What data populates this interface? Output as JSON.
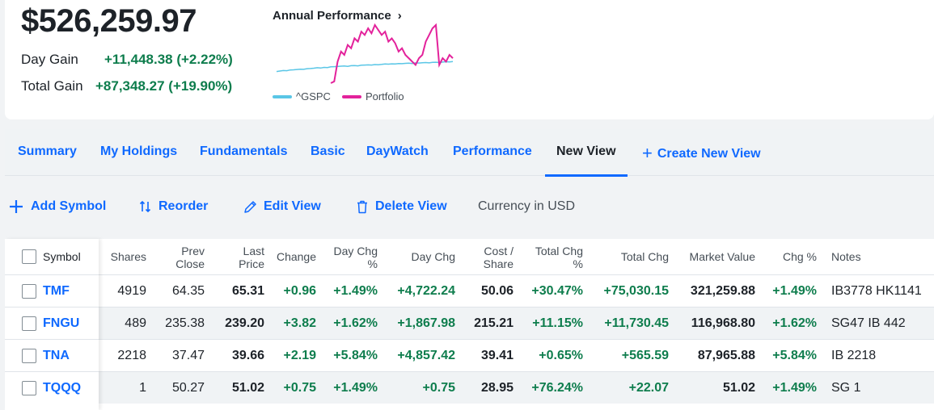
{
  "summary": {
    "total_value": "$526,259.97",
    "day_gain_label": "Day Gain",
    "day_gain_value": "+11,448.38 (+2.22%)",
    "total_gain_label": "Total Gain",
    "total_gain_value": "+87,348.27 (+19.90%)"
  },
  "performance": {
    "title": "Annual Performance",
    "chevron": "›",
    "legend": [
      {
        "name": "^GSPC",
        "color": "#5ac6e6"
      },
      {
        "name": "Portfolio",
        "color": "#e3229b"
      }
    ]
  },
  "chart_data": {
    "type": "line",
    "title": "Annual Performance",
    "xlabel": "",
    "ylabel": "",
    "grid": false,
    "legend": "bottom-left",
    "x": [
      0,
      1,
      2,
      3,
      4,
      5,
      6,
      7,
      8,
      9,
      10,
      11,
      12,
      13,
      14,
      15,
      16,
      17,
      18,
      19,
      20,
      21,
      22,
      23,
      24,
      25,
      26,
      27,
      28,
      29,
      30,
      31,
      32,
      33,
      34,
      35,
      36,
      37,
      38,
      39,
      40,
      41,
      42,
      43,
      44,
      45,
      46,
      47,
      48,
      49,
      50,
      51,
      52
    ],
    "series": [
      {
        "name": "^GSPC",
        "color": "#5ac6e6",
        "values": [
          0,
          0.3,
          0.6,
          0.5,
          0.9,
          1.0,
          1.2,
          1.4,
          1.3,
          1.7,
          1.8,
          2.0,
          2.3,
          2.1,
          2.5,
          2.4,
          2.8,
          2.9,
          3.0,
          3.2,
          3.3,
          3.1,
          3.5,
          3.6,
          3.4,
          3.8,
          3.9,
          4.0,
          3.9,
          4.2,
          4.1,
          4.3,
          4.5,
          4.4,
          4.6,
          4.5,
          4.8,
          4.7,
          4.9,
          5.0,
          4.8,
          5.2,
          5.1,
          5.3,
          5.4,
          5.2,
          5.5,
          5.6,
          5.4,
          5.7,
          5.9,
          5.8,
          6.0
        ]
      },
      {
        "name": "Portfolio",
        "color": "#e3229b",
        "values": [
          null,
          null,
          null,
          null,
          null,
          null,
          null,
          null,
          null,
          null,
          null,
          null,
          null,
          null,
          null,
          null,
          -7,
          -6,
          6,
          12,
          10,
          16,
          14,
          20,
          18,
          24,
          22,
          26,
          23,
          28,
          25,
          22,
          24,
          18,
          20,
          17,
          12,
          14,
          10,
          8,
          6,
          4,
          8,
          10,
          18,
          22,
          26,
          28,
          4,
          8,
          6,
          10,
          8
        ]
      }
    ]
  },
  "tabs": [
    {
      "label": "Summary",
      "active": false
    },
    {
      "label": "My Holdings",
      "active": false
    },
    {
      "label": "Fundamentals",
      "active": false
    },
    {
      "label": "Basic",
      "active": false
    },
    {
      "label": "DayWatch",
      "active": false
    },
    {
      "label": "Performance",
      "active": false
    },
    {
      "label": "New View",
      "active": true
    },
    {
      "label": "Create New View",
      "active": false
    }
  ],
  "toolbar": {
    "add_symbol": "Add Symbol",
    "reorder": "Reorder",
    "edit_view": "Edit View",
    "delete_view": "Delete View",
    "currency": "Currency in USD"
  },
  "table": {
    "headers": {
      "symbol": "Symbol",
      "shares": "Shares",
      "prev_close": [
        "Prev",
        "Close"
      ],
      "last_price": [
        "Last",
        "Price"
      ],
      "change": "Change",
      "day_chg_pct": [
        "Day Chg",
        "%"
      ],
      "day_chg": "Day Chg",
      "cost_share": [
        "Cost /",
        "Share"
      ],
      "total_chg_pct": [
        "Total Chg",
        "%"
      ],
      "total_chg": "Total Chg",
      "market_value": "Market Value",
      "chg_pct": "Chg %",
      "notes": "Notes"
    },
    "rows": [
      {
        "symbol": "TMF",
        "shares": "4919",
        "prev_close": "64.35",
        "last_price": "65.31",
        "change": "+0.96",
        "day_chg_pct": "+1.49%",
        "day_chg": "+4,722.24",
        "cost_share": "50.06",
        "total_chg_pct": "+30.47%",
        "total_chg": "+75,030.15",
        "market_value": "321,259.88",
        "chg_pct": "+1.49%",
        "notes": "IB3778 HK1141"
      },
      {
        "symbol": "FNGU",
        "shares": "489",
        "prev_close": "235.38",
        "last_price": "239.20",
        "change": "+3.82",
        "day_chg_pct": "+1.62%",
        "day_chg": "+1,867.98",
        "cost_share": "215.21",
        "total_chg_pct": "+11.15%",
        "total_chg": "+11,730.45",
        "market_value": "116,968.80",
        "chg_pct": "+1.62%",
        "notes": "SG47 IB 442"
      },
      {
        "symbol": "TNA",
        "shares": "2218",
        "prev_close": "37.47",
        "last_price": "39.66",
        "change": "+2.19",
        "day_chg_pct": "+5.84%",
        "day_chg": "+4,857.42",
        "cost_share": "39.41",
        "total_chg_pct": "+0.65%",
        "total_chg": "+565.59",
        "market_value": "87,965.88",
        "chg_pct": "+5.84%",
        "notes": "IB 2218"
      },
      {
        "symbol": "TQQQ",
        "shares": "1",
        "prev_close": "50.27",
        "last_price": "51.02",
        "change": "+0.75",
        "day_chg_pct": "+1.49%",
        "day_chg": "+0.75",
        "cost_share": "28.95",
        "total_chg_pct": "+76.24%",
        "total_chg": "+22.07",
        "market_value": "51.02",
        "chg_pct": "+1.49%",
        "notes": "SG 1"
      }
    ]
  }
}
